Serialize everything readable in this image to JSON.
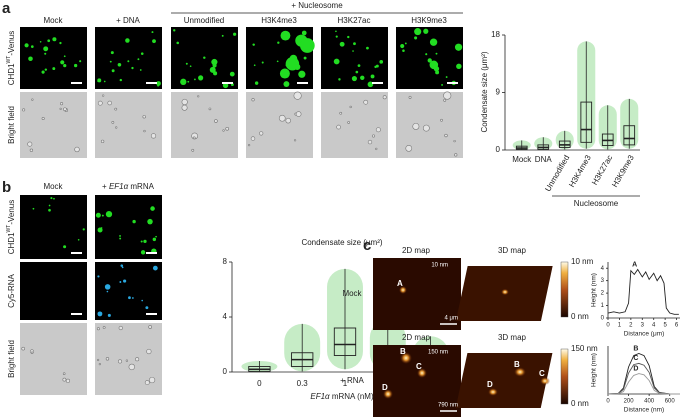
{
  "panel_a": {
    "label": "a",
    "group_label": "+ Nucleosome",
    "columns": [
      "Mock",
      "+ DNA",
      "Unmodified",
      "H3K4me3",
      "H3K27ac",
      "H3K9me3"
    ],
    "row_labels": [
      {
        "base": "CHD1",
        "sup": "WT",
        "suffix": "-Venus"
      },
      {
        "base": "Bright field"
      }
    ],
    "chart": {
      "type": "box",
      "y_label": "Condensate size (μm²)",
      "categories": [
        "Mock",
        "DNA",
        "Unmodified",
        "H3K4me3",
        "H3K27ac",
        "H3K9me3"
      ],
      "group_label": "Nucleosome",
      "color": "#5cc95c",
      "ylim": [
        0,
        18
      ],
      "yticks": [
        0,
        9,
        18
      ],
      "boxes": {
        "min": [
          0,
          0,
          0.1,
          0.2,
          0.1,
          0.2
        ],
        "q1": [
          0.1,
          0.1,
          0.4,
          1.2,
          0.7,
          0.8
        ],
        "median": [
          0.3,
          0.4,
          0.8,
          3.2,
          1.5,
          1.8
        ],
        "q3": [
          0.6,
          0.8,
          1.4,
          7.5,
          2.5,
          3.8
        ],
        "max": [
          1.5,
          2,
          3,
          17,
          7,
          8
        ]
      }
    }
  },
  "panel_b": {
    "label": "b",
    "mock_label": "Mock",
    "rna_label": {
      "prefix": "+ ",
      "gene": "EF1α",
      "suffix": " mRNA"
    },
    "row_labels": [
      {
        "base": "CHD1",
        "sup": "WT",
        "suffix": "-Venus"
      },
      {
        "base": "Cy5-RNA"
      },
      {
        "base": "Bright field"
      }
    ],
    "chart": {
      "type": "box",
      "title": "Condensate size (μm²)",
      "x_label": {
        "gene": "EF1α",
        "suffix": " mRNA (nM)"
      },
      "categories": [
        "0",
        "0.3",
        "1",
        "3",
        "10"
      ],
      "color": "#5cc95c",
      "ylim": [
        0,
        8
      ],
      "yticks": [
        0,
        4,
        8
      ],
      "boxes": {
        "min": [
          0,
          0.05,
          0.2,
          0.05,
          0.05
        ],
        "q1": [
          0.05,
          0.4,
          1.2,
          0.4,
          0.3
        ],
        "median": [
          0.2,
          0.9,
          2.0,
          0.8,
          0.7
        ],
        "q3": [
          0.4,
          1.4,
          3.2,
          1.4,
          1.1
        ],
        "max": [
          0.8,
          3.5,
          7.5,
          3.8,
          2.6
        ]
      }
    }
  },
  "panel_c": {
    "label": "c",
    "mock": {
      "name": "Mock",
      "map2d_title": "2D map",
      "map3d_title": "3D map",
      "map_height": "10 nm",
      "scale_bar": "4 μm",
      "colorbar_max": "10 nm",
      "colorbar_min": "0 nm",
      "points": [
        "A"
      ],
      "profile": {
        "type": "line",
        "x_label": "Distance (μm)",
        "y_label": "Height (nm)",
        "xlim": [
          0,
          6.3
        ],
        "xticks": [
          0,
          1,
          2,
          3,
          4,
          5,
          6
        ],
        "ylim": [
          0,
          4.5
        ],
        "yticks": [
          0,
          1,
          2,
          3,
          4
        ],
        "series": [
          {
            "name": "A",
            "color": "#222222",
            "x": [
              0,
              0.5,
              1,
              1.5,
              1.8,
              2,
              2.3,
              2.6,
              3,
              3.3,
              3.6,
              4,
              4.3,
              4.6,
              4.9,
              5.1,
              5.4,
              5.8,
              6.2
            ],
            "values": [
              0.4,
              0.5,
              0.4,
              0.5,
              1.2,
              3.8,
              3.5,
              3.9,
              3.3,
              3.7,
              3.1,
              3.6,
              3.0,
              3.4,
              2.8,
              0.8,
              0.4,
              0.3,
              0.3
            ]
          }
        ]
      }
    },
    "rna": {
      "name": "+ RNA",
      "map2d_title": "2D map",
      "map3d_title": "3D map",
      "map_height": "150 nm",
      "scale_bar": "790 nm",
      "colorbar_max": "150 nm",
      "colorbar_min": "0 nm",
      "points": [
        "B",
        "C",
        "D"
      ],
      "profile": {
        "type": "line",
        "x_label": "Distance (nm)",
        "y_label": "Height (nm)",
        "xlim": [
          0,
          700
        ],
        "xticks": [
          0,
          200,
          400,
          600
        ],
        "ylim": [
          0,
          160
        ],
        "series": [
          {
            "name": "B",
            "color": "#222222",
            "x": [
              0,
              100,
              150,
              200,
              250,
              300,
              350,
              400,
              450,
              500,
              600,
              700
            ],
            "values": [
              0,
              2,
              20,
              90,
              128,
              135,
              128,
              95,
              25,
              5,
              0,
              0
            ]
          },
          {
            "name": "C",
            "color": "#555555",
            "x": [
              0,
              100,
              150,
              200,
              250,
              300,
              350,
              400,
              450,
              500,
              600,
              700
            ],
            "values": [
              0,
              2,
              15,
              70,
              98,
              102,
              96,
              72,
              20,
              4,
              0,
              0
            ]
          },
          {
            "name": "D",
            "color": "#999999",
            "x": [
              0,
              100,
              150,
              200,
              250,
              300,
              350,
              400,
              450,
              500,
              600,
              700
            ],
            "values": [
              0,
              1,
              8,
              40,
              62,
              68,
              64,
              45,
              12,
              2,
              0,
              0
            ]
          }
        ]
      }
    }
  }
}
